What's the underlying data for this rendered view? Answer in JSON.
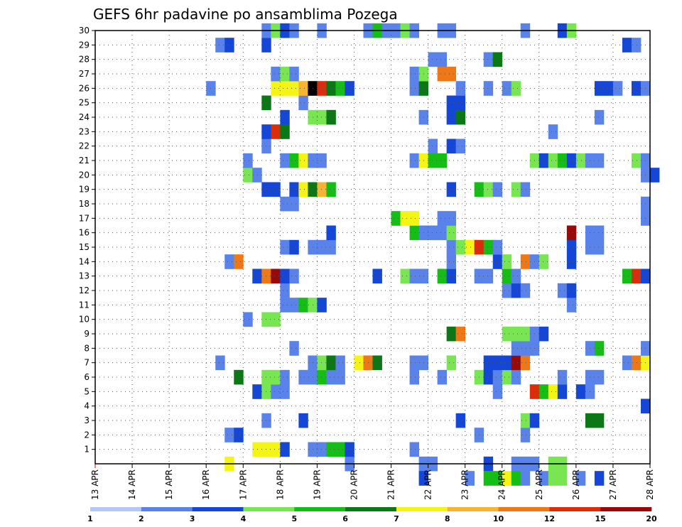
{
  "chart_data": {
    "type": "heatmap",
    "title": "GEFS 6hr padavine po ansamblima Pozega",
    "xlabel": "",
    "ylabel": "",
    "x_ticks": [
      "13 APR",
      "14 APR",
      "15 APR",
      "16 APR",
      "17 APR",
      "18 APR",
      "19 APR",
      "20 APR",
      "21 APR",
      "22 APR",
      "23 APR",
      "24 APR",
      "25 APR",
      "26 APR",
      "27 APR",
      "28 APR"
    ],
    "y_ticks": [
      "1",
      "2",
      "3",
      "4",
      "5",
      "6",
      "7",
      "8",
      "9",
      "10",
      "11",
      "12",
      "13",
      "14",
      "15",
      "16",
      "17",
      "18",
      "19",
      "20",
      "21",
      "22",
      "23",
      "24",
      "25",
      "26",
      "27",
      "28",
      "29",
      "30"
    ],
    "ylim": [
      0,
      30
    ],
    "steps_per_day": 4,
    "n_steps": 60,
    "grid": true,
    "colorbar": {
      "ticks": [
        "1",
        "2",
        "3",
        "4",
        "5",
        "6",
        "7",
        "8",
        "10",
        "12",
        "15",
        "20"
      ],
      "colors": [
        "#b4c8f8",
        "#5a82eb",
        "#1446d8",
        "#78e650",
        "#14be14",
        "#0a7814",
        "#f5f514",
        "#f7b432",
        "#f07814",
        "#dc2d0a",
        "#960a0a"
      ]
    },
    "cells": [
      [
        0,
        14,
        6
      ],
      [
        0,
        27,
        1
      ],
      [
        0,
        35,
        1
      ],
      [
        0,
        36,
        1
      ],
      [
        0,
        42,
        2
      ],
      [
        0,
        45,
        1
      ],
      [
        0,
        46,
        1
      ],
      [
        0,
        47,
        1
      ],
      [
        0,
        49,
        3
      ],
      [
        0,
        50,
        3
      ],
      [
        1,
        17,
        6
      ],
      [
        1,
        18,
        6
      ],
      [
        1,
        19,
        6
      ],
      [
        1,
        20,
        2
      ],
      [
        1,
        23,
        1
      ],
      [
        1,
        24,
        1
      ],
      [
        1,
        25,
        4
      ],
      [
        1,
        26,
        4
      ],
      [
        1,
        27,
        2
      ],
      [
        1,
        34,
        1
      ],
      [
        2,
        14,
        1
      ],
      [
        2,
        15,
        2
      ],
      [
        2,
        41,
        1
      ],
      [
        2,
        46,
        1
      ],
      [
        3,
        18,
        1
      ],
      [
        3,
        22,
        2
      ],
      [
        3,
        39,
        2
      ],
      [
        3,
        46,
        3
      ],
      [
        3,
        47,
        2
      ],
      [
        3,
        53,
        5
      ],
      [
        3,
        54,
        5
      ],
      [
        4,
        59,
        2
      ],
      [
        5,
        17,
        2
      ],
      [
        5,
        18,
        3
      ],
      [
        5,
        19,
        1
      ],
      [
        5,
        20,
        1
      ],
      [
        5,
        43,
        1
      ],
      [
        5,
        47,
        9
      ],
      [
        5,
        48,
        4
      ],
      [
        5,
        49,
        6
      ],
      [
        5,
        50,
        2
      ],
      [
        5,
        52,
        2
      ],
      [
        5,
        53,
        1
      ],
      [
        6,
        15,
        5
      ],
      [
        6,
        18,
        3
      ],
      [
        6,
        19,
        3
      ],
      [
        6,
        20,
        1
      ],
      [
        6,
        22,
        1
      ],
      [
        6,
        23,
        1
      ],
      [
        6,
        24,
        4
      ],
      [
        6,
        25,
        1
      ],
      [
        6,
        26,
        1
      ],
      [
        6,
        34,
        1
      ],
      [
        6,
        37,
        1
      ],
      [
        6,
        41,
        3
      ],
      [
        6,
        42,
        2
      ],
      [
        6,
        43,
        1
      ],
      [
        6,
        44,
        3
      ],
      [
        6,
        45,
        1
      ],
      [
        6,
        50,
        1
      ],
      [
        6,
        53,
        1
      ],
      [
        6,
        54,
        1
      ],
      [
        7,
        13,
        1
      ],
      [
        7,
        23,
        1
      ],
      [
        7,
        24,
        3
      ],
      [
        7,
        25,
        5
      ],
      [
        7,
        26,
        1
      ],
      [
        7,
        28,
        6
      ],
      [
        7,
        29,
        8
      ],
      [
        7,
        30,
        5
      ],
      [
        7,
        34,
        1
      ],
      [
        7,
        35,
        1
      ],
      [
        7,
        38,
        3
      ],
      [
        7,
        42,
        2
      ],
      [
        7,
        43,
        2
      ],
      [
        7,
        44,
        2
      ],
      [
        7,
        45,
        10
      ],
      [
        7,
        46,
        8
      ],
      [
        7,
        57,
        1
      ],
      [
        7,
        58,
        8
      ],
      [
        7,
        59,
        6
      ],
      [
        8,
        21,
        1
      ],
      [
        8,
        45,
        1
      ],
      [
        8,
        46,
        1
      ],
      [
        8,
        47,
        1
      ],
      [
        8,
        53,
        1
      ],
      [
        8,
        54,
        4
      ],
      [
        8,
        59,
        1
      ],
      [
        9,
        38,
        5
      ],
      [
        9,
        39,
        8
      ],
      [
        9,
        44,
        3
      ],
      [
        9,
        45,
        3
      ],
      [
        9,
        46,
        3
      ],
      [
        9,
        47,
        1
      ],
      [
        9,
        48,
        2
      ],
      [
        10,
        16,
        1
      ],
      [
        10,
        18,
        3
      ],
      [
        10,
        19,
        3
      ],
      [
        11,
        20,
        1
      ],
      [
        11,
        21,
        1
      ],
      [
        11,
        22,
        4
      ],
      [
        11,
        23,
        3
      ],
      [
        11,
        24,
        2
      ],
      [
        11,
        51,
        1
      ],
      [
        12,
        20,
        1
      ],
      [
        12,
        44,
        1
      ],
      [
        12,
        45,
        2
      ],
      [
        12,
        46,
        1
      ],
      [
        12,
        50,
        1
      ],
      [
        12,
        51,
        2
      ],
      [
        13,
        17,
        2
      ],
      [
        13,
        18,
        8
      ],
      [
        13,
        19,
        10
      ],
      [
        13,
        20,
        2
      ],
      [
        13,
        21,
        1
      ],
      [
        13,
        30,
        2
      ],
      [
        13,
        33,
        3
      ],
      [
        13,
        34,
        1
      ],
      [
        13,
        35,
        1
      ],
      [
        13,
        37,
        4
      ],
      [
        13,
        38,
        2
      ],
      [
        13,
        41,
        1
      ],
      [
        13,
        42,
        1
      ],
      [
        13,
        44,
        4
      ],
      [
        13,
        45,
        1
      ],
      [
        13,
        57,
        4
      ],
      [
        13,
        58,
        9
      ],
      [
        13,
        59,
        2
      ],
      [
        14,
        14,
        1
      ],
      [
        14,
        15,
        8
      ],
      [
        14,
        38,
        1
      ],
      [
        14,
        43,
        2
      ],
      [
        14,
        44,
        3
      ],
      [
        14,
        46,
        8
      ],
      [
        14,
        47,
        1
      ],
      [
        14,
        48,
        3
      ],
      [
        14,
        51,
        2
      ],
      [
        15,
        20,
        1
      ],
      [
        15,
        21,
        2
      ],
      [
        15,
        23,
        1
      ],
      [
        15,
        24,
        1
      ],
      [
        15,
        25,
        1
      ],
      [
        15,
        38,
        1
      ],
      [
        15,
        39,
        3
      ],
      [
        15,
        40,
        6
      ],
      [
        15,
        41,
        9
      ],
      [
        15,
        42,
        4
      ],
      [
        15,
        43,
        1
      ],
      [
        15,
        51,
        2
      ],
      [
        15,
        53,
        1
      ],
      [
        15,
        54,
        1
      ],
      [
        16,
        25,
        2
      ],
      [
        16,
        34,
        4
      ],
      [
        16,
        35,
        1
      ],
      [
        16,
        36,
        1
      ],
      [
        16,
        37,
        1
      ],
      [
        16,
        38,
        3
      ],
      [
        16,
        51,
        10
      ],
      [
        16,
        53,
        1
      ],
      [
        16,
        54,
        1
      ],
      [
        17,
        32,
        4
      ],
      [
        17,
        33,
        6
      ],
      [
        17,
        34,
        6
      ],
      [
        17,
        37,
        1
      ],
      [
        17,
        38,
        1
      ],
      [
        17,
        59,
        1
      ],
      [
        18,
        20,
        1
      ],
      [
        18,
        21,
        1
      ],
      [
        18,
        59,
        1
      ],
      [
        19,
        18,
        2
      ],
      [
        19,
        19,
        2
      ],
      [
        19,
        21,
        2
      ],
      [
        19,
        22,
        6
      ],
      [
        19,
        23,
        5
      ],
      [
        19,
        24,
        7
      ],
      [
        19,
        25,
        4
      ],
      [
        19,
        38,
        2
      ],
      [
        19,
        41,
        4
      ],
      [
        19,
        42,
        3
      ],
      [
        19,
        43,
        1
      ],
      [
        19,
        45,
        3
      ],
      [
        19,
        46,
        1
      ],
      [
        20,
        16,
        3
      ],
      [
        20,
        17,
        1
      ],
      [
        20,
        59,
        1
      ],
      [
        20,
        60,
        2
      ],
      [
        21,
        16,
        1
      ],
      [
        21,
        20,
        1
      ],
      [
        21,
        21,
        4
      ],
      [
        21,
        22,
        6
      ],
      [
        21,
        23,
        1
      ],
      [
        21,
        24,
        1
      ],
      [
        21,
        34,
        1
      ],
      [
        21,
        35,
        6
      ],
      [
        21,
        36,
        4
      ],
      [
        21,
        37,
        4
      ],
      [
        21,
        47,
        3
      ],
      [
        21,
        48,
        2
      ],
      [
        21,
        49,
        3
      ],
      [
        21,
        50,
        4
      ],
      [
        21,
        51,
        2
      ],
      [
        21,
        52,
        3
      ],
      [
        21,
        53,
        1
      ],
      [
        21,
        54,
        1
      ],
      [
        21,
        58,
        3
      ],
      [
        21,
        59,
        1
      ],
      [
        22,
        18,
        1
      ],
      [
        22,
        36,
        1
      ],
      [
        22,
        38,
        2
      ],
      [
        22,
        39,
        1
      ],
      [
        23,
        18,
        2
      ],
      [
        23,
        19,
        9
      ],
      [
        23,
        20,
        5
      ],
      [
        23,
        49,
        1
      ],
      [
        24,
        20,
        2
      ],
      [
        24,
        23,
        3
      ],
      [
        24,
        24,
        3
      ],
      [
        24,
        25,
        5
      ],
      [
        24,
        35,
        1
      ],
      [
        24,
        38,
        2
      ],
      [
        24,
        39,
        5
      ],
      [
        24,
        54,
        1
      ],
      [
        25,
        18,
        5
      ],
      [
        25,
        38,
        2
      ],
      [
        25,
        39,
        2
      ],
      [
        25,
        22,
        1
      ],
      [
        26,
        12,
        1
      ],
      [
        26,
        19,
        6
      ],
      [
        26,
        20,
        6
      ],
      [
        26,
        21,
        6
      ],
      [
        26,
        22,
        7
      ],
      [
        26,
        23,
        11
      ],
      [
        26,
        24,
        9
      ],
      [
        26,
        25,
        5
      ],
      [
        26,
        26,
        4
      ],
      [
        26,
        27,
        2
      ],
      [
        26,
        34,
        1
      ],
      [
        26,
        35,
        5
      ],
      [
        26,
        39,
        1
      ],
      [
        26,
        42,
        1
      ],
      [
        26,
        44,
        1
      ],
      [
        26,
        45,
        3
      ],
      [
        26,
        54,
        2
      ],
      [
        26,
        55,
        2
      ],
      [
        26,
        56,
        1
      ],
      [
        26,
        58,
        2
      ],
      [
        26,
        59,
        1
      ],
      [
        27,
        19,
        1
      ],
      [
        27,
        20,
        3
      ],
      [
        27,
        21,
        1
      ],
      [
        27,
        34,
        1
      ],
      [
        27,
        35,
        3
      ],
      [
        27,
        37,
        8
      ],
      [
        27,
        38,
        8
      ],
      [
        28,
        36,
        1
      ],
      [
        28,
        37,
        1
      ],
      [
        28,
        42,
        1
      ],
      [
        28,
        43,
        5
      ],
      [
        29,
        13,
        1
      ],
      [
        29,
        14,
        2
      ],
      [
        29,
        18,
        2
      ],
      [
        29,
        57,
        2
      ],
      [
        29,
        58,
        1
      ],
      [
        30,
        18,
        1
      ],
      [
        30,
        19,
        3
      ],
      [
        30,
        20,
        2
      ],
      [
        30,
        21,
        1
      ],
      [
        30,
        24,
        1
      ],
      [
        30,
        29,
        1
      ],
      [
        30,
        30,
        4
      ],
      [
        30,
        31,
        1
      ],
      [
        30,
        32,
        1
      ],
      [
        30,
        33,
        3
      ],
      [
        30,
        34,
        1
      ],
      [
        30,
        37,
        1
      ],
      [
        30,
        38,
        1
      ],
      [
        30,
        46,
        1
      ],
      [
        30,
        50,
        2
      ],
      [
        30,
        51,
        3
      ],
      [
        -1,
        35,
        2
      ],
      [
        -1,
        40,
        1
      ],
      [
        -1,
        42,
        4
      ],
      [
        -1,
        43,
        4
      ],
      [
        -1,
        44,
        6
      ],
      [
        -1,
        45,
        4
      ],
      [
        -1,
        46,
        1
      ],
      [
        -1,
        48,
        1
      ],
      [
        -1,
        49,
        3
      ],
      [
        -1,
        50,
        3
      ],
      [
        -1,
        52,
        1
      ],
      [
        -1,
        54,
        2
      ]
    ]
  }
}
